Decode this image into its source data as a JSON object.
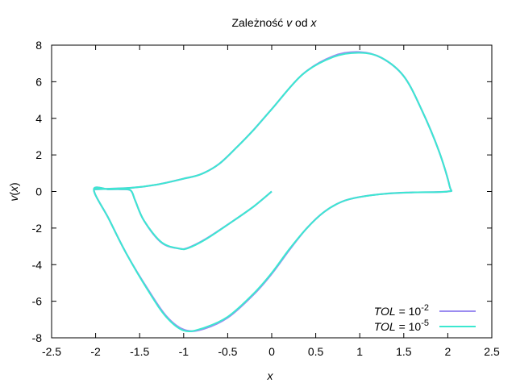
{
  "chart_data": {
    "type": "line",
    "title_parts": [
      "Zależność ",
      "v",
      " od ",
      "x"
    ],
    "xlabel": "x",
    "ylabel_parts": [
      "v",
      "(",
      "x",
      ")"
    ],
    "xlim": [
      -2.5,
      2.5
    ],
    "ylim": [
      -8,
      8
    ],
    "xticks": [
      "-2.5",
      "-2",
      "-1.5",
      "-1",
      "-0.5",
      "0",
      "0.5",
      "1",
      "1.5",
      "2",
      "2.5"
    ],
    "yticks": [
      "-8",
      "-6",
      "-4",
      "-2",
      "0",
      "2",
      "4",
      "6",
      "8"
    ],
    "grid": false,
    "legend_position": "bottom-right",
    "series": [
      {
        "name": "TOL = 10^-2",
        "label_var": "TOL",
        "label_eq": " = 10",
        "label_exp": "-2",
        "color": "#9b8cf0",
        "points": [
          [
            0,
            0
          ],
          [
            -0.2,
            -0.8
          ],
          [
            -0.45,
            -1.65
          ],
          [
            -0.75,
            -2.6
          ],
          [
            -0.95,
            -3.08
          ],
          [
            -1.05,
            -3.12
          ],
          [
            -1.25,
            -2.8
          ],
          [
            -1.45,
            -1.6
          ],
          [
            -1.55,
            -0.5
          ],
          [
            -1.6,
            0.05
          ],
          [
            -1.7,
            0.12
          ],
          [
            -1.85,
            0.12
          ],
          [
            -2.02,
            0.1
          ],
          [
            -1.85,
            -1.5
          ],
          [
            -1.65,
            -3.4
          ],
          [
            -1.4,
            -5.4
          ],
          [
            -1.2,
            -6.8
          ],
          [
            -1.0,
            -7.55
          ],
          [
            -0.8,
            -7.55
          ],
          [
            -0.5,
            -6.9
          ],
          [
            -0.2,
            -5.6
          ],
          [
            0,
            -4.5
          ],
          [
            0.2,
            -3.2
          ],
          [
            0.4,
            -2.0
          ],
          [
            0.6,
            -1.1
          ],
          [
            0.8,
            -0.55
          ],
          [
            1.0,
            -0.3
          ],
          [
            1.3,
            -0.12
          ],
          [
            1.6,
            -0.05
          ],
          [
            2.0,
            0
          ],
          [
            2.02,
            0.3
          ],
          [
            1.9,
            2.2
          ],
          [
            1.7,
            4.5
          ],
          [
            1.5,
            6.3
          ],
          [
            1.25,
            7.3
          ],
          [
            1.0,
            7.62
          ],
          [
            0.7,
            7.4
          ],
          [
            0.35,
            6.4
          ],
          [
            0,
            4.5
          ],
          [
            -0.2,
            3.4
          ],
          [
            -0.4,
            2.4
          ],
          [
            -0.6,
            1.5
          ],
          [
            -0.8,
            0.95
          ],
          [
            -1.0,
            0.7
          ],
          [
            -1.3,
            0.38
          ],
          [
            -1.6,
            0.2
          ],
          [
            -2.02,
            0.12
          ]
        ]
      },
      {
        "name": "TOL = 10^-5",
        "label_var": "TOL",
        "label_eq": " = 10",
        "label_exp": "-5",
        "color": "#3ce8d0",
        "points": [
          [
            0,
            0
          ],
          [
            -0.2,
            -0.8
          ],
          [
            -0.45,
            -1.65
          ],
          [
            -0.75,
            -2.62
          ],
          [
            -0.95,
            -3.1
          ],
          [
            -1.05,
            -3.12
          ],
          [
            -1.25,
            -2.78
          ],
          [
            -1.45,
            -1.6
          ],
          [
            -1.55,
            -0.5
          ],
          [
            -1.6,
            0.05
          ],
          [
            -1.7,
            0.13
          ],
          [
            -1.85,
            0.12
          ],
          [
            -2.02,
            0.1
          ],
          [
            -1.85,
            -1.5
          ],
          [
            -1.65,
            -3.4
          ],
          [
            -1.4,
            -5.45
          ],
          [
            -1.2,
            -6.85
          ],
          [
            -1.0,
            -7.6
          ],
          [
            -0.8,
            -7.5
          ],
          [
            -0.5,
            -6.85
          ],
          [
            -0.2,
            -5.55
          ],
          [
            0,
            -4.45
          ],
          [
            0.2,
            -3.15
          ],
          [
            0.4,
            -2.0
          ],
          [
            0.6,
            -1.1
          ],
          [
            0.8,
            -0.55
          ],
          [
            1.0,
            -0.3
          ],
          [
            1.3,
            -0.12
          ],
          [
            1.6,
            -0.05
          ],
          [
            2.0,
            0
          ],
          [
            2.02,
            0.3
          ],
          [
            1.9,
            2.2
          ],
          [
            1.7,
            4.5
          ],
          [
            1.5,
            6.3
          ],
          [
            1.25,
            7.3
          ],
          [
            1.0,
            7.58
          ],
          [
            0.7,
            7.35
          ],
          [
            0.35,
            6.4
          ],
          [
            0,
            4.5
          ],
          [
            -0.2,
            3.4
          ],
          [
            -0.4,
            2.4
          ],
          [
            -0.6,
            1.5
          ],
          [
            -0.8,
            0.95
          ],
          [
            -1.0,
            0.7
          ],
          [
            -1.3,
            0.38
          ],
          [
            -1.6,
            0.2
          ],
          [
            -2.02,
            0.12
          ]
        ]
      }
    ]
  }
}
